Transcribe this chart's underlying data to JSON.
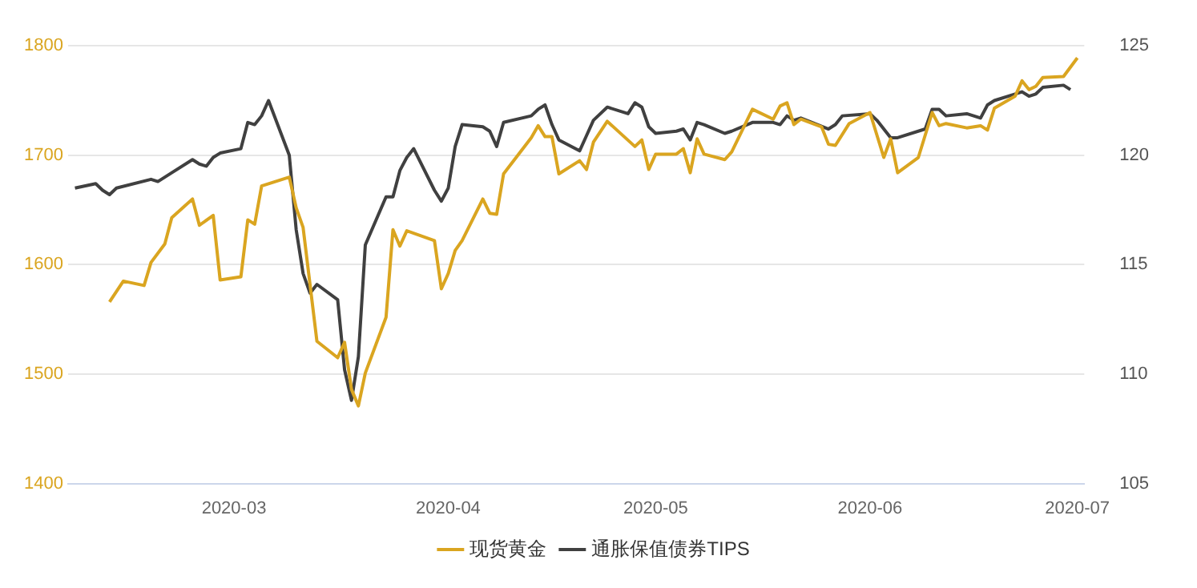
{
  "chart_data": {
    "type": "line",
    "xlim": [
      "2020-02-06",
      "2020-07-02"
    ],
    "xticks": [
      "2020-03",
      "2020-04",
      "2020-05",
      "2020-06",
      "2020-07"
    ],
    "ylim": [
      1400,
      1800
    ],
    "yticks": [
      1400,
      1500,
      1600,
      1700,
      1800
    ],
    "y2lim": [
      105,
      125
    ],
    "y2ticks": [
      105,
      110,
      115,
      120,
      125
    ],
    "grid": "y",
    "legend": "bottom",
    "marker": "none",
    "line_style": "solid",
    "series": [
      {
        "name": "现货黄金",
        "color": "#daa520",
        "x": [
          "2020-02-12",
          "2020-02-14",
          "2020-02-17",
          "2020-02-18",
          "2020-02-20",
          "2020-02-21",
          "2020-02-24",
          "2020-02-25",
          "2020-02-27",
          "2020-02-28",
          "2020-03-02",
          "2020-03-03",
          "2020-03-04",
          "2020-03-05",
          "2020-03-09",
          "2020-03-10",
          "2020-03-11",
          "2020-03-13",
          "2020-03-16",
          "2020-03-17",
          "2020-03-18",
          "2020-03-19",
          "2020-03-20",
          "2020-03-23",
          "2020-03-24",
          "2020-03-25",
          "2020-03-26",
          "2020-03-30",
          "2020-03-31",
          "2020-04-01",
          "2020-04-02",
          "2020-04-03",
          "2020-04-06",
          "2020-04-07",
          "2020-04-08",
          "2020-04-09",
          "2020-04-13",
          "2020-04-14",
          "2020-04-15",
          "2020-04-16",
          "2020-04-17",
          "2020-04-20",
          "2020-04-21",
          "2020-04-22",
          "2020-04-24",
          "2020-04-28",
          "2020-04-29",
          "2020-04-30",
          "2020-05-01",
          "2020-05-04",
          "2020-05-05",
          "2020-05-06",
          "2020-05-07",
          "2020-05-08",
          "2020-05-11",
          "2020-05-12",
          "2020-05-15",
          "2020-05-18",
          "2020-05-19",
          "2020-05-20",
          "2020-05-21",
          "2020-05-22",
          "2020-05-25",
          "2020-05-26",
          "2020-05-27",
          "2020-05-29",
          "2020-06-01",
          "2020-06-03",
          "2020-06-04",
          "2020-06-05",
          "2020-06-08",
          "2020-06-10",
          "2020-06-11",
          "2020-06-12",
          "2020-06-15",
          "2020-06-17",
          "2020-06-18",
          "2020-06-19",
          "2020-06-22",
          "2020-06-23",
          "2020-06-24",
          "2020-06-25",
          "2020-06-26",
          "2020-06-29",
          "2020-07-01"
        ],
        "values": [
          1566,
          1585,
          1581,
          1602,
          1619,
          1643,
          1660,
          1636,
          1645,
          1586,
          1589,
          1641,
          1637,
          1672,
          1680,
          1652,
          1634,
          1530,
          1515,
          1529,
          1486,
          1471,
          1501,
          1552,
          1632,
          1617,
          1631,
          1622,
          1578,
          1592,
          1613,
          1622,
          1660,
          1647,
          1646,
          1683,
          1716,
          1727,
          1717,
          1717,
          1683,
          1695,
          1687,
          1712,
          1731,
          1708,
          1714,
          1687,
          1701,
          1701,
          1706,
          1684,
          1715,
          1701,
          1696,
          1703,
          1742,
          1733,
          1745,
          1748,
          1728,
          1733,
          1726,
          1710,
          1709,
          1729,
          1739,
          1698,
          1715,
          1684,
          1698,
          1739,
          1727,
          1729,
          1725,
          1727,
          1723,
          1743,
          1754,
          1768,
          1760,
          1763,
          1771,
          1772,
          1789
        ]
      },
      {
        "name": "通胀保值债券TIPS",
        "color": "#404040",
        "axis": "y2",
        "x": [
          "2020-02-07",
          "2020-02-10",
          "2020-02-11",
          "2020-02-12",
          "2020-02-13",
          "2020-02-18",
          "2020-02-19",
          "2020-02-21",
          "2020-02-24",
          "2020-02-25",
          "2020-02-26",
          "2020-02-27",
          "2020-02-28",
          "2020-03-02",
          "2020-03-03",
          "2020-03-04",
          "2020-03-05",
          "2020-03-06",
          "2020-03-09",
          "2020-03-10",
          "2020-03-11",
          "2020-03-12",
          "2020-03-13",
          "2020-03-16",
          "2020-03-17",
          "2020-03-18",
          "2020-03-19",
          "2020-03-20",
          "2020-03-23",
          "2020-03-24",
          "2020-03-25",
          "2020-03-26",
          "2020-03-27",
          "2020-03-30",
          "2020-03-31",
          "2020-04-01",
          "2020-04-02",
          "2020-04-03",
          "2020-04-06",
          "2020-04-07",
          "2020-04-08",
          "2020-04-09",
          "2020-04-13",
          "2020-04-14",
          "2020-04-15",
          "2020-04-16",
          "2020-04-17",
          "2020-04-20",
          "2020-04-21",
          "2020-04-22",
          "2020-04-24",
          "2020-04-27",
          "2020-04-28",
          "2020-04-29",
          "2020-04-30",
          "2020-05-01",
          "2020-05-04",
          "2020-05-05",
          "2020-05-06",
          "2020-05-07",
          "2020-05-08",
          "2020-05-11",
          "2020-05-12",
          "2020-05-15",
          "2020-05-18",
          "2020-05-19",
          "2020-05-20",
          "2020-05-21",
          "2020-05-22",
          "2020-05-26",
          "2020-05-27",
          "2020-05-28",
          "2020-06-01",
          "2020-06-02",
          "2020-06-04",
          "2020-06-05",
          "2020-06-09",
          "2020-06-10",
          "2020-06-11",
          "2020-06-12",
          "2020-06-15",
          "2020-06-17",
          "2020-06-18",
          "2020-06-19",
          "2020-06-22",
          "2020-06-23",
          "2020-06-24",
          "2020-06-25",
          "2020-06-26",
          "2020-06-29",
          "2020-06-30"
        ],
        "values": [
          118.5,
          118.7,
          118.4,
          118.2,
          118.5,
          118.9,
          118.8,
          119.2,
          119.8,
          119.6,
          119.5,
          119.9,
          120.1,
          120.3,
          121.5,
          121.4,
          121.8,
          122.5,
          120.0,
          116.6,
          114.6,
          113.7,
          114.1,
          113.4,
          110.2,
          108.8,
          110.8,
          115.9,
          118.1,
          118.1,
          119.3,
          119.9,
          120.3,
          118.4,
          117.9,
          118.5,
          120.4,
          121.4,
          121.3,
          121.1,
          120.4,
          121.5,
          121.8,
          122.1,
          122.3,
          121.4,
          120.7,
          120.2,
          120.9,
          121.6,
          122.2,
          121.9,
          122.4,
          122.2,
          121.3,
          121.0,
          121.1,
          121.2,
          120.7,
          121.5,
          121.4,
          121.0,
          121.1,
          121.5,
          121.5,
          121.4,
          121.8,
          121.6,
          121.7,
          121.2,
          121.4,
          121.8,
          121.9,
          121.6,
          120.8,
          120.8,
          121.2,
          122.1,
          122.1,
          121.8,
          121.9,
          121.7,
          122.3,
          122.5,
          122.8,
          122.9,
          122.7,
          122.8,
          123.1,
          123.2,
          123.0
        ]
      }
    ]
  }
}
